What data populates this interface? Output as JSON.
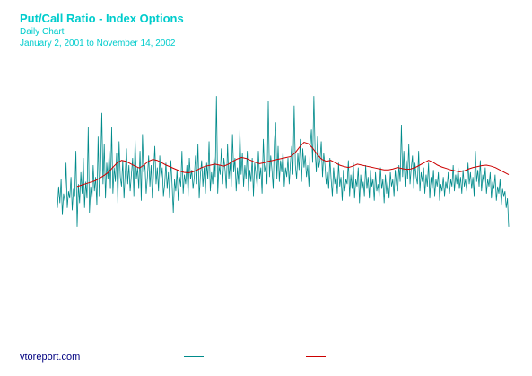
{
  "header": {
    "title": "Put/Call Ratio - Index Options",
    "subtitle": "Daily Chart",
    "date_range": "January 2, 2001 to November 14, 2002"
  },
  "footer": {
    "source": "vtoreport.com"
  },
  "colors": {
    "title": "#00cccc",
    "daily_series": "#008b8b",
    "moving_average": "#cc0000",
    "source": "#000080"
  },
  "chart_data": {
    "type": "line",
    "title": "Put/Call Ratio - Index Options",
    "xlabel": "",
    "ylabel": "",
    "grid": false,
    "legend": "bottom",
    "note_axes": "No axis ticks or labels are printed; values below are the put/call ratio on an arbitrary relative scale reconstructed from the plot.",
    "ylim": [
      0,
      4
    ],
    "series": [
      {
        "name": "",
        "color": "#008b8b",
        "style": "daily",
        "values": [
          1.1,
          1.55,
          1.2,
          1.7,
          0.95,
          1.4,
          1.25,
          2.05,
          1.1,
          1.45,
          1.3,
          1.75,
          1.05,
          1.5,
          1.35,
          2.3,
          0.7,
          1.6,
          1.2,
          1.85,
          1.4,
          2.15,
          1.1,
          1.65,
          1.3,
          2.8,
          1.0,
          1.55,
          1.25,
          2.0,
          1.45,
          1.75,
          1.15,
          2.6,
          1.35,
          1.9,
          3.1,
          1.6,
          2.45,
          1.3,
          2.05,
          1.7,
          2.3,
          1.5,
          2.8,
          1.4,
          1.95,
          1.65,
          2.25,
          1.2,
          2.5,
          1.75,
          1.55,
          2.1,
          1.3,
          1.85,
          2.35,
          1.6,
          2.0,
          1.45,
          1.8,
          2.15,
          1.35,
          2.55,
          1.7,
          1.95,
          1.5,
          2.3,
          1.25,
          2.65,
          1.85,
          2.0,
          1.4,
          1.75,
          2.2,
          1.55,
          2.0,
          1.3,
          1.85,
          2.4,
          1.6,
          1.95,
          1.45,
          2.2,
          1.7,
          1.95,
          1.35,
          1.6,
          2.05,
          1.5,
          1.85,
          1.3,
          2.1,
          1.6,
          1.0,
          1.7,
          1.45,
          1.9,
          1.25,
          1.75,
          1.55,
          2.3,
          1.4,
          1.8,
          1.6,
          2.0,
          1.35,
          2.15,
          1.7,
          1.9,
          1.5,
          1.75,
          2.2,
          1.6,
          2.45,
          1.3,
          1.8,
          2.1,
          1.55,
          1.95,
          1.4,
          2.05,
          1.7,
          2.5,
          1.45,
          1.85,
          1.6,
          2.2,
          1.75,
          3.45,
          1.4,
          2.0,
          1.8,
          2.35,
          1.6,
          2.15,
          1.9,
          1.5,
          2.45,
          1.7,
          2.05,
          1.55,
          2.65,
          1.85,
          2.15,
          1.45,
          1.95,
          1.6,
          2.75,
          1.8,
          2.25,
          1.55,
          2.0,
          1.7,
          2.3,
          1.45,
          1.9,
          1.65,
          2.15,
          1.35,
          2.05,
          1.8,
          1.55,
          2.3,
          1.7,
          1.95,
          1.4,
          2.55,
          1.85,
          2.0,
          1.6,
          3.35,
          1.75,
          2.2,
          1.9,
          1.5,
          2.5,
          2.9,
          1.7,
          2.4,
          1.65,
          2.1,
          1.85,
          2.3,
          1.55,
          1.95,
          1.75,
          2.15,
          1.6,
          2.05,
          2.4,
          1.8,
          3.25,
          2.0,
          1.7,
          2.25,
          1.9,
          2.55,
          1.65,
          2.35,
          1.95,
          2.2,
          1.75,
          2.0,
          1.55,
          2.4,
          2.75,
          2.05,
          3.45,
          2.3,
          1.85,
          2.6,
          1.95,
          2.1,
          2.5,
          1.75,
          2.25,
          2.0,
          1.6,
          1.85,
          1.5,
          2.15,
          1.7,
          1.35,
          1.95,
          1.6,
          1.8,
          1.4,
          2.05,
          1.55,
          1.75,
          1.25,
          1.9,
          1.45,
          1.7,
          1.6,
          2.1,
          1.35,
          1.8,
          1.5,
          2.05,
          1.3,
          1.7,
          1.55,
          1.95,
          1.2,
          1.8,
          1.45,
          1.65,
          1.35,
          2.0,
          1.5,
          1.75,
          1.3,
          1.9,
          1.55,
          1.7,
          1.25,
          1.85,
          1.45,
          1.6,
          1.35,
          1.95,
          1.5,
          1.7,
          1.2,
          1.8,
          1.4,
          1.65,
          1.3,
          1.85,
          1.55,
          1.7,
          1.35,
          1.9,
          1.6,
          1.45,
          2.0,
          1.65,
          2.85,
          1.75,
          2.3,
          1.55,
          2.1,
          1.7,
          2.45,
          1.6,
          1.95,
          2.2,
          1.5,
          2.05,
          1.75,
          1.6,
          2.3,
          1.45,
          1.85,
          1.65,
          1.95,
          1.4,
          1.8,
          1.55,
          2.05,
          1.3,
          1.75,
          1.5,
          1.9,
          1.35,
          1.7,
          1.55,
          1.85,
          1.25,
          1.6,
          1.45,
          1.75,
          1.35,
          1.65,
          1.5,
          1.85,
          1.4,
          1.7,
          1.55,
          2.0,
          1.45,
          1.8,
          1.6,
          1.95,
          1.5,
          1.75,
          1.4,
          1.9,
          1.55,
          1.7,
          1.45,
          2.05,
          1.6,
          1.85,
          1.5,
          1.75,
          1.35,
          2.3,
          1.65,
          1.9,
          1.55,
          2.1,
          1.45,
          1.8,
          1.6,
          1.95,
          1.4,
          1.7,
          1.55,
          1.85,
          1.3,
          1.65,
          1.5,
          1.8,
          1.25,
          1.55,
          1.4,
          1.7,
          1.15,
          1.5,
          1.35,
          1.45,
          1.1,
          1.3,
          0.7
        ]
      },
      {
        "name": "",
        "color": "#cc0000",
        "style": "moving_average",
        "values": [
          1.55,
          1.58,
          1.61,
          1.64,
          1.67,
          1.72,
          1.78,
          1.85,
          1.95,
          2.05,
          2.1,
          2.08,
          2.03,
          1.98,
          1.94,
          2.0,
          2.08,
          2.12,
          2.1,
          2.05,
          2.0,
          1.96,
          1.92,
          1.88,
          1.85,
          1.84,
          1.86,
          1.9,
          1.95,
          1.98,
          2.0,
          2.02,
          2.0,
          1.98,
          2.02,
          2.08,
          2.13,
          2.16,
          2.14,
          2.1,
          2.06,
          2.03,
          2.05,
          2.08,
          2.1,
          2.12,
          2.14,
          2.16,
          2.18,
          2.26,
          2.38,
          2.48,
          2.45,
          2.35,
          2.22,
          2.12,
          2.08,
          2.1,
          2.05,
          2.0,
          1.97,
          1.95,
          1.98,
          2.02,
          2.0,
          1.98,
          1.96,
          1.94,
          1.92,
          1.9,
          1.9,
          1.92,
          1.95,
          1.93,
          1.91,
          1.92,
          1.95,
          2.0,
          2.05,
          2.1,
          2.06,
          2.0,
          1.96,
          1.93,
          1.9,
          1.88,
          1.86,
          1.88,
          1.92,
          1.95,
          1.97,
          1.99,
          2.0,
          1.98,
          1.95,
          1.9,
          1.85,
          1.8
        ]
      }
    ]
  }
}
